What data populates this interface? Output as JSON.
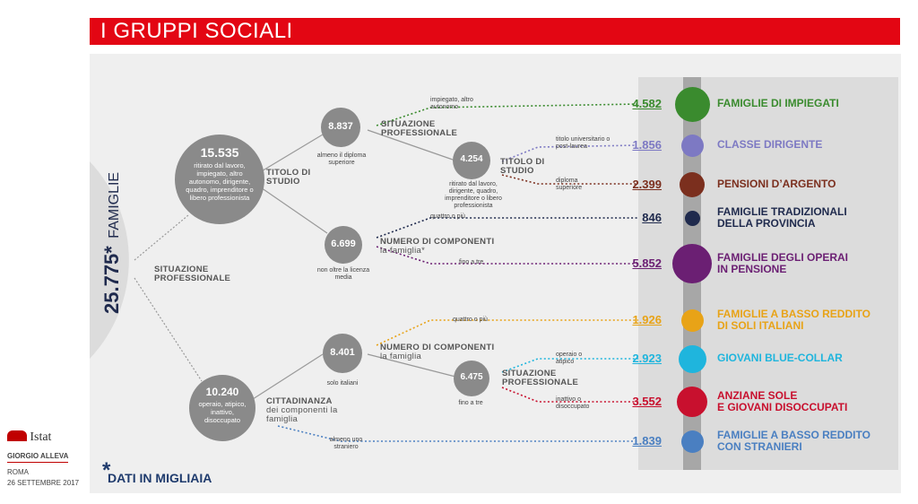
{
  "title": "I GRUPPI SOCIALI",
  "total": {
    "value": "25.775*",
    "unit": "FAMIGLIE"
  },
  "footnote": "DATI IN MIGLIAIA",
  "footnote_star": "*",
  "branding": {
    "logo_text": "Istat",
    "author": "GIORGIO ALLEVA",
    "place": "ROMA",
    "date": "26 SETTEMBRE 2017",
    "logo_color": "#c00000"
  },
  "labels": {
    "situazione_root": "SITUAZIONE PROFESSIONALE",
    "titolo_studio_1": "TITOLO DI STUDIO",
    "situazione_2": "SITUAZIONE PROFESSIONALE",
    "titolo_studio_2": "TITOLO DI STUDIO",
    "numero_comp_1": "NUMERO DI COMPONENTI",
    "numero_comp_1_sub": "la famiglia*",
    "numero_comp_2": "NUMERO DI COMPONENTI",
    "numero_comp_2_sub": "la famiglia",
    "cittadinanza": "CITTADINANZA",
    "cittadinanza_sub": "dei componenti la famiglia",
    "situazione_3": "SITUAZIONE PROFESSIONALE"
  },
  "nodes": {
    "n15535": {
      "value": "15.535",
      "desc": "ritirato dal lavoro, impiegato, altro autonomo, dirigente, quadro, imprenditore o libero professionista"
    },
    "n10240": {
      "value": "10.240",
      "desc": "operaio, atipico, inattivo, disoccupato"
    },
    "n8837": {
      "value": "8.837",
      "desc": "almeno il diploma superiore"
    },
    "n6699": {
      "value": "6.699",
      "desc": "non oltre la licenza media"
    },
    "n4254": {
      "value": "4.254",
      "desc": "ritirato dal lavoro, dirigente, quadro, imprenditore o libero professionista"
    },
    "n8401": {
      "value": "8.401",
      "desc": "solo italiani"
    },
    "n6475": {
      "value": "6.475",
      "desc": "fino a tre"
    }
  },
  "branch_notes": {
    "impiegato": "impiegato, altro autonomo",
    "titolo_univ": "titolo universitario o post-laurea",
    "diploma": "diploma superiore",
    "quattro_1": "quattro o più",
    "fino_tre_1": "fino a tre",
    "quattro_2": "quattro o più",
    "operaio": "operaio o atipico",
    "inattivo": "inattivo o disoccupato",
    "almeno": "almeno uno straniero"
  },
  "groups": [
    {
      "value": "4.582",
      "name": "FAMIGLIE DI IMPIEGATI",
      "name2": "",
      "color": "#3a8b2e"
    },
    {
      "value": "1.856",
      "name": "CLASSE DIRIGENTE",
      "name2": "",
      "color": "#7d79c3"
    },
    {
      "value": "2.399",
      "name": "PENSIONI D’ARGENTO",
      "name2": "",
      "color": "#7b2f1e"
    },
    {
      "value": "846",
      "name": "FAMIGLIE TRADIZIONALI",
      "name2": "DELLA PROVINCIA",
      "color": "#1f2a4d"
    },
    {
      "value": "5.852",
      "name": "FAMIGLIE DEGLI OPERAI",
      "name2": "IN PENSIONE",
      "color": "#6b1f73"
    },
    {
      "value": "1.926",
      "name": "FAMIGLIE A BASSO REDDITO",
      "name2": "DI SOLI ITALIANI",
      "color": "#e8a317"
    },
    {
      "value": "2.923",
      "name": "GIOVANI BLUE-COLLAR",
      "name2": "",
      "color": "#1fb5dd"
    },
    {
      "value": "3.552",
      "name": "ANZIANE SOLE",
      "name2": "E GIOVANI DISOCCUPATI",
      "color": "#c8102e"
    },
    {
      "value": "1.839",
      "name": "FAMIGLIE A BASSO REDDITO",
      "name2": "CON STRANIERI",
      "color": "#4a7fc1"
    }
  ]
}
